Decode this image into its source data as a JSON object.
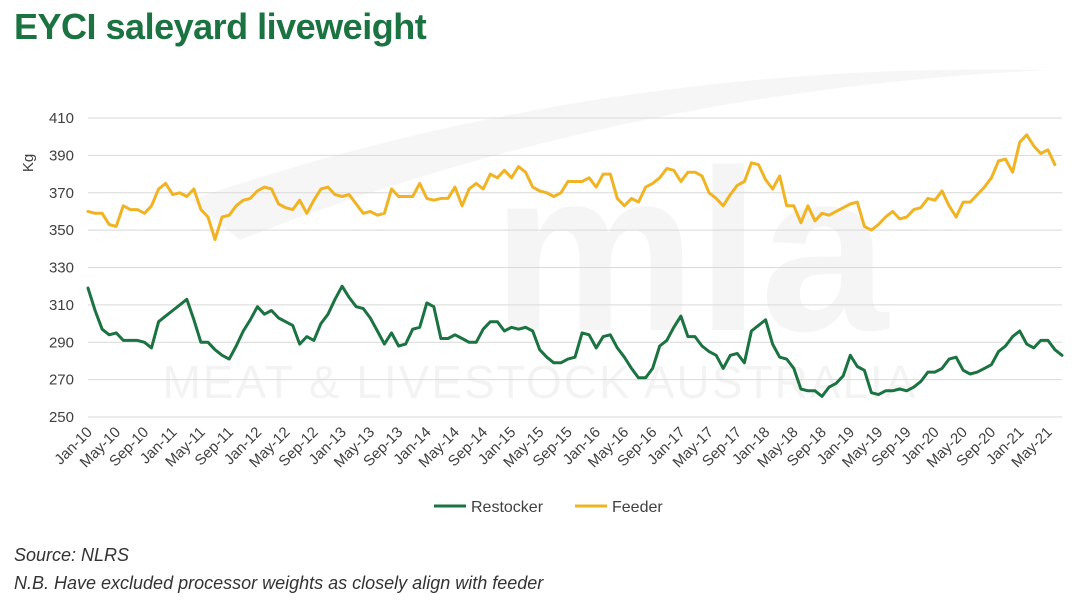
{
  "title": "EYCI saleyard liveweight",
  "watermark": {
    "logo_text": "mla",
    "text": "MEAT & LIVESTOCK AUSTRALIA"
  },
  "source_note": "Source: NLRS",
  "nb_note": "N.B. Have excluded processor weights as closely align with feeder",
  "colors": {
    "title": "#1a7340",
    "restocker": "#1a7340",
    "feeder": "#f0b323",
    "grid": "#d9d9d9"
  },
  "chart_data": {
    "type": "line",
    "title": "",
    "xlabel": "",
    "ylabel": "Kg",
    "ylim": [
      250,
      410
    ],
    "yticks": [
      250,
      270,
      290,
      310,
      330,
      350,
      370,
      390,
      410
    ],
    "grid": true,
    "legend_position": "bottom",
    "x_start": "Jan-10",
    "x_frequency": "monthly",
    "x_tick_labels": [
      "Jan-10",
      "May-10",
      "Sep-10",
      "Jan-11",
      "May-11",
      "Sep-11",
      "Jan-12",
      "May-12",
      "Sep-12",
      "Jan-13",
      "May-13",
      "Sep-13",
      "Jan-14",
      "May-14",
      "Sep-14",
      "Jan-15",
      "May-15",
      "Sep-15",
      "Jan-16",
      "May-16",
      "Sep-16",
      "Jan-17",
      "May-17",
      "Sep-17",
      "Jan-18",
      "May-18",
      "Sep-18",
      "Jan-19",
      "May-19",
      "Sep-19",
      "Jan-20",
      "May-20",
      "Sep-20",
      "Jan-21",
      "May-21"
    ],
    "series": [
      {
        "name": "Restocker",
        "color": "#1a7340",
        "values": [
          319,
          307,
          297,
          294,
          295,
          291,
          291,
          291,
          290,
          287,
          301,
          304,
          307,
          310,
          313,
          302,
          290,
          290,
          286,
          283,
          281,
          288,
          296,
          302,
          309,
          305,
          307,
          303,
          301,
          299,
          289,
          293,
          291,
          300,
          305,
          313,
          320,
          314,
          309,
          308,
          303,
          296,
          289,
          295,
          288,
          289,
          297,
          298,
          311,
          309,
          292,
          292,
          294,
          292,
          290,
          290,
          297,
          301,
          301,
          296,
          298,
          297,
          298,
          296,
          286,
          282,
          279,
          279,
          281,
          282,
          295,
          294,
          287,
          293,
          294,
          287,
          282,
          276,
          271,
          271,
          276,
          288,
          291,
          298,
          304,
          293,
          293,
          288,
          285,
          283,
          276,
          283,
          284,
          279,
          296,
          299,
          302,
          289,
          282,
          281,
          276,
          265,
          264,
          264,
          261,
          266,
          268,
          272,
          283,
          277,
          275,
          263,
          262,
          264,
          264,
          265,
          264,
          266,
          269,
          274,
          274,
          276,
          281,
          282,
          275,
          273,
          274,
          276,
          278,
          285,
          288,
          293,
          296,
          289,
          287,
          291,
          291,
          286,
          283
        ]
      },
      {
        "name": "Feeder",
        "color": "#f0b323",
        "values": [
          360,
          359,
          359,
          353,
          352,
          363,
          361,
          361,
          359,
          363,
          372,
          375,
          369,
          370,
          368,
          372,
          361,
          357,
          345,
          357,
          358,
          363,
          366,
          367,
          371,
          373,
          372,
          364,
          362,
          361,
          366,
          359,
          366,
          372,
          373,
          369,
          368,
          369,
          364,
          359,
          360,
          358,
          359,
          372,
          368,
          368,
          368,
          375,
          367,
          366,
          367,
          367,
          373,
          363,
          372,
          375,
          372,
          380,
          378,
          382,
          378,
          384,
          381,
          373,
          371,
          370,
          368,
          370,
          376,
          376,
          376,
          378,
          373,
          380,
          380,
          367,
          363,
          367,
          365,
          373,
          375,
          378,
          383,
          382,
          376,
          381,
          381,
          379,
          370,
          367,
          363,
          369,
          374,
          376,
          386,
          385,
          377,
          372,
          379,
          363,
          363,
          354,
          363,
          355,
          359,
          358,
          360,
          362,
          364,
          365,
          352,
          350,
          353,
          357,
          360,
          356,
          357,
          361,
          362,
          367,
          366,
          371,
          363,
          357,
          365,
          365,
          369,
          373,
          378,
          387,
          388,
          381,
          397,
          401,
          395,
          391,
          393,
          385
        ]
      }
    ]
  }
}
